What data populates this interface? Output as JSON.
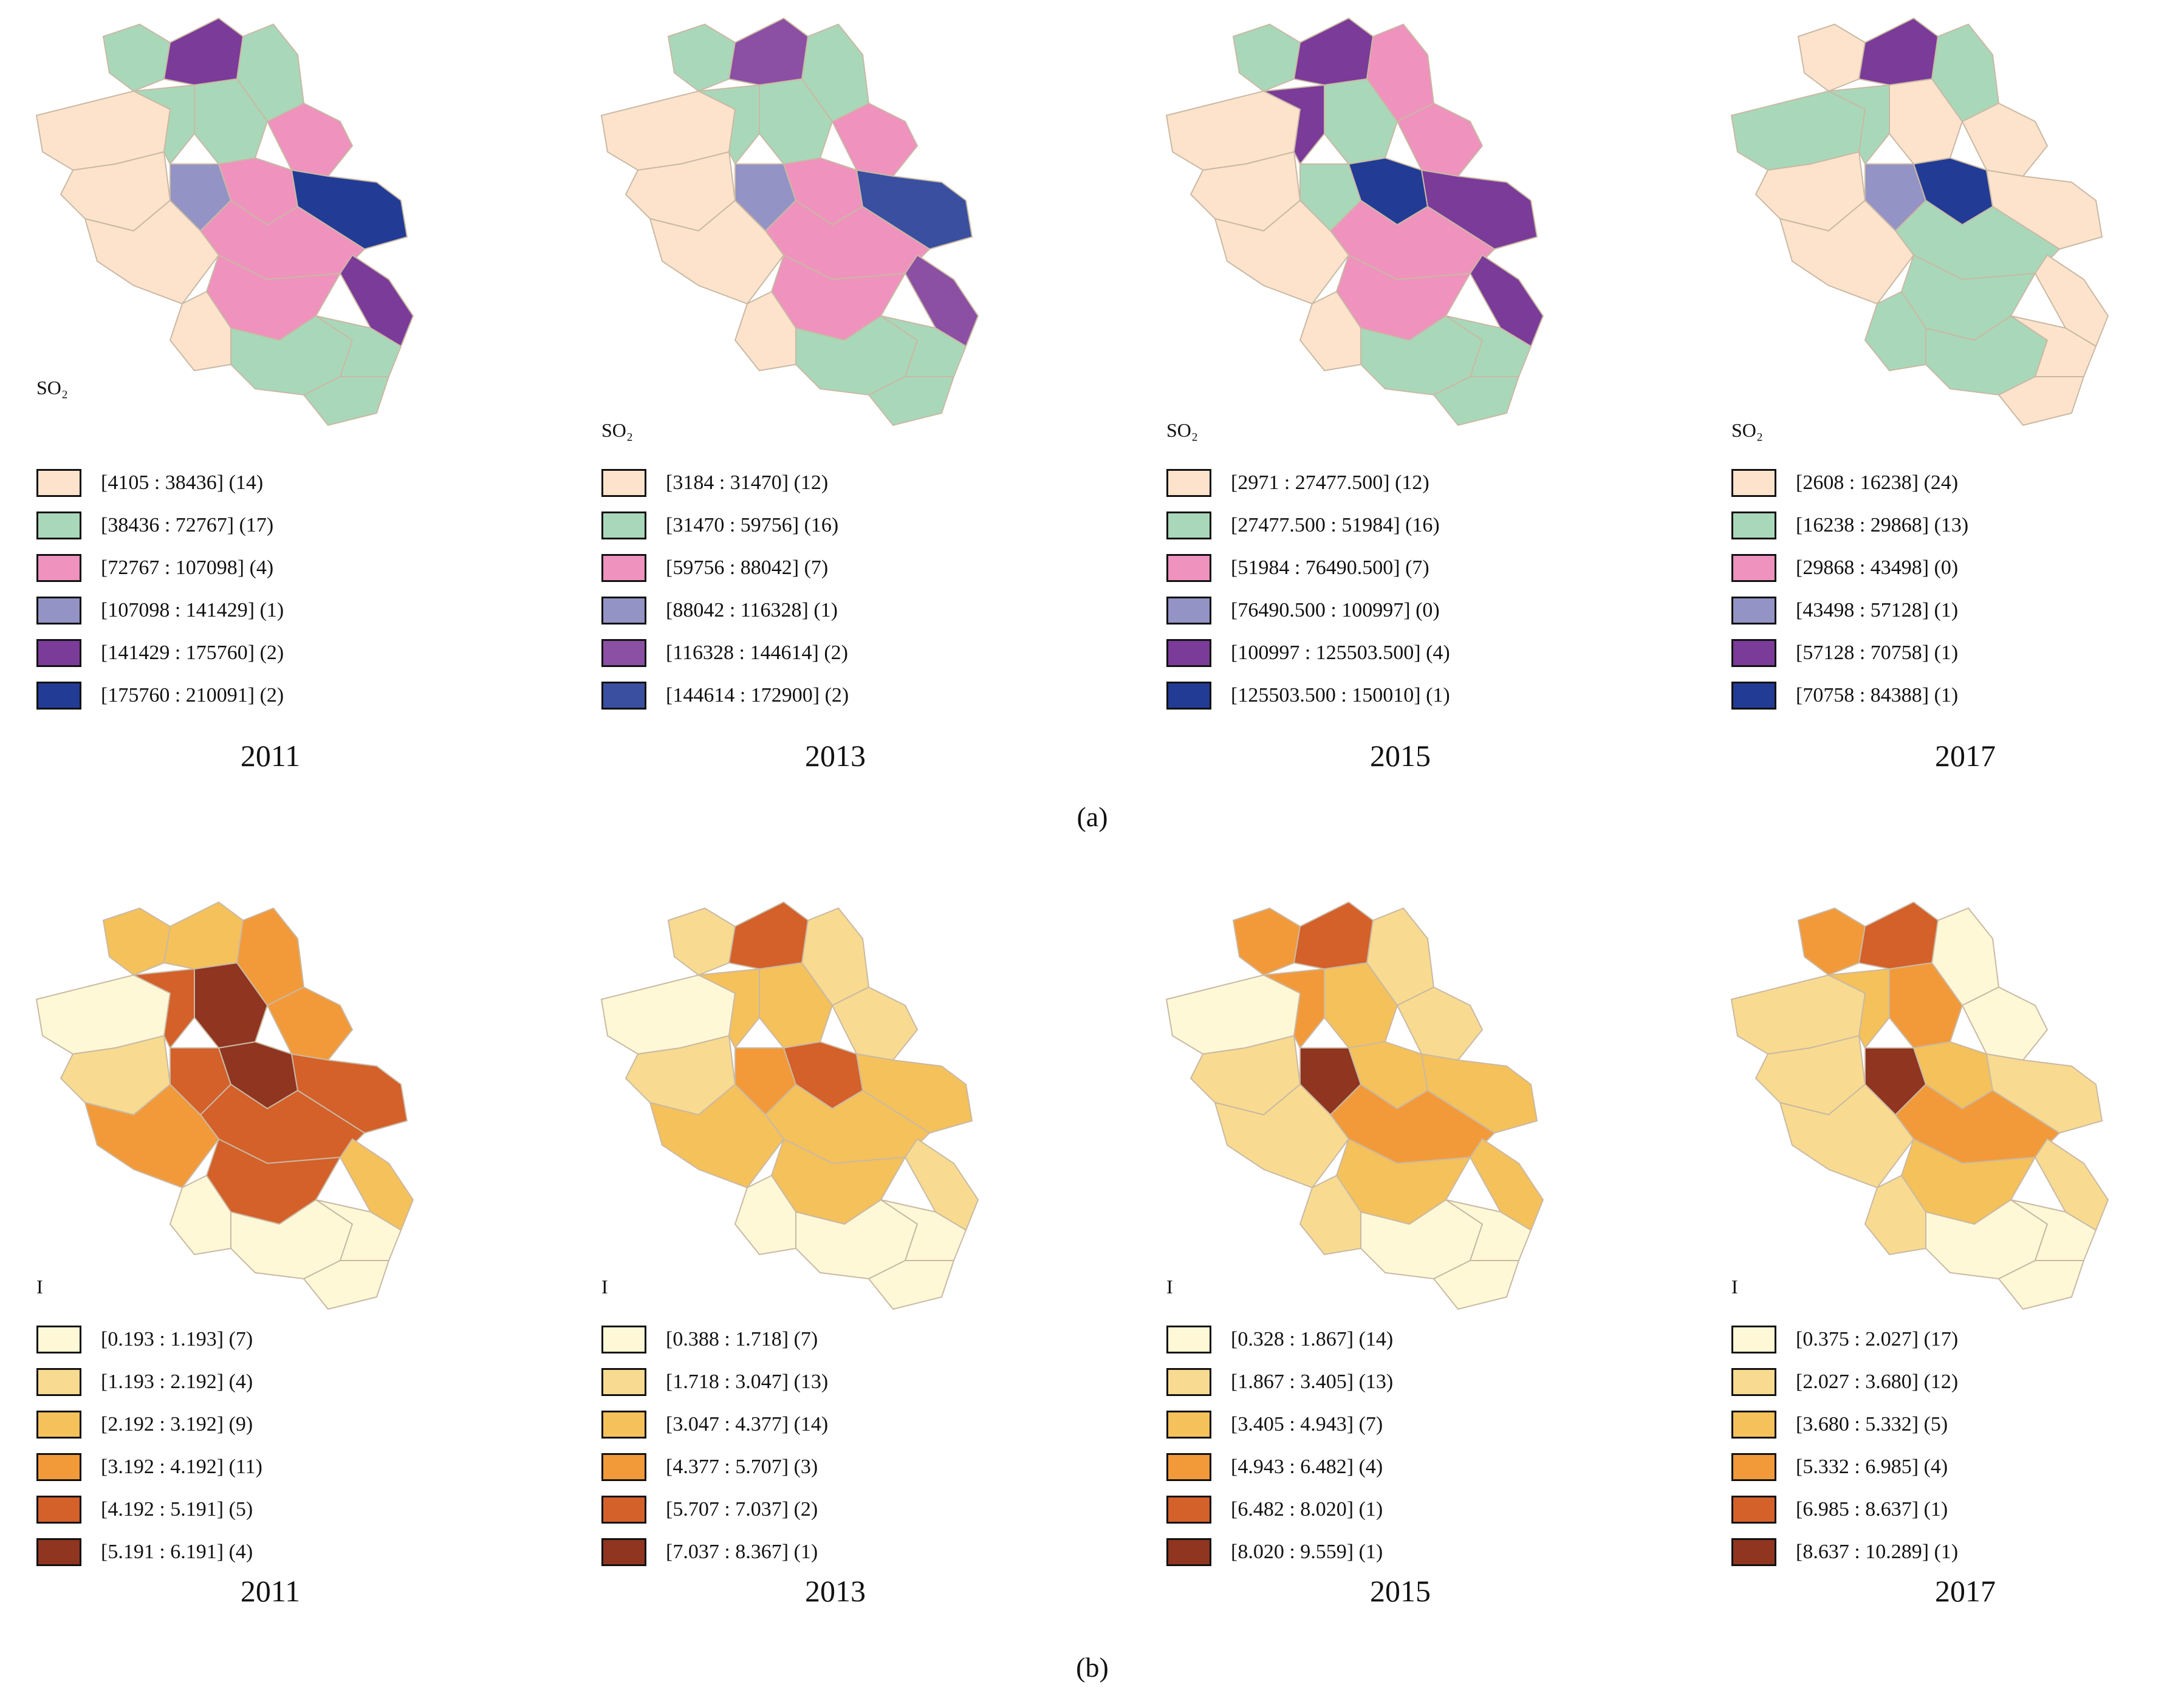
{
  "section_a": {
    "caption": "(a)",
    "legend_title": "SO₂",
    "panels": [
      {
        "year": "2011",
        "classes": [
          {
            "label": "[4105 : 38436] (14)",
            "color": "#fde3cc"
          },
          {
            "label": "[38436 : 72767] (17)",
            "color": "#a8d8b9"
          },
          {
            "label": "[72767 : 107098] (4)",
            "color": "#ef92bd"
          },
          {
            "label": "[107098 : 141429] (1)",
            "color": "#9493c6"
          },
          {
            "label": "[141429 : 175760] (2)",
            "color": "#7b3b98"
          },
          {
            "label": "[175760 : 210091] (2)",
            "color": "#223b95"
          }
        ]
      },
      {
        "year": "2013",
        "classes": [
          {
            "label": "[3184 : 31470] (12)",
            "color": "#fde3cc"
          },
          {
            "label": "[31470 : 59756] (16)",
            "color": "#a8d8b9"
          },
          {
            "label": "[59756 : 88042] (7)",
            "color": "#ef92bd"
          },
          {
            "label": "[88042 : 116328] (1)",
            "color": "#9493c6"
          },
          {
            "label": "[116328 : 144614] (2)",
            "color": "#8b4fa3"
          },
          {
            "label": "[144614 : 172900] (2)",
            "color": "#3a4fa0"
          }
        ]
      },
      {
        "year": "2015",
        "classes": [
          {
            "label": "[2971 : 27477.500] (12)",
            "color": "#fde3cc"
          },
          {
            "label": "[27477.500 : 51984] (16)",
            "color": "#a8d8b9"
          },
          {
            "label": "[51984 : 76490.500] (7)",
            "color": "#ef92bd"
          },
          {
            "label": "[76490.500 : 100997] (0)",
            "color": "#9493c6"
          },
          {
            "label": "[100997 : 125503.500] (4)",
            "color": "#7b3b98"
          },
          {
            "label": "[125503.500 : 150010] (1)",
            "color": "#223b95"
          }
        ]
      },
      {
        "year": "2017",
        "classes": [
          {
            "label": "[2608 : 16238] (24)",
            "color": "#fde3cc"
          },
          {
            "label": "[16238 : 29868] (13)",
            "color": "#a8d8b9"
          },
          {
            "label": "[29868 : 43498] (0)",
            "color": "#ef92bd"
          },
          {
            "label": "[43498 : 57128] (1)",
            "color": "#9493c6"
          },
          {
            "label": "[57128 : 70758] (1)",
            "color": "#7b3b98"
          },
          {
            "label": "[70758 : 84388] (1)",
            "color": "#223b95"
          }
        ]
      }
    ]
  },
  "section_b": {
    "caption": "(b)",
    "legend_title": "I",
    "panels": [
      {
        "year": "2011",
        "classes": [
          {
            "label": "[0.193 : 1.193] (7)",
            "color": "#fef8d6"
          },
          {
            "label": "[1.193 : 2.192] (4)",
            "color": "#f8db90"
          },
          {
            "label": "[2.192 : 3.192] (9)",
            "color": "#f5c15a"
          },
          {
            "label": "[3.192 : 4.192] (11)",
            "color": "#f29a3a"
          },
          {
            "label": "[4.192 : 5.191] (5)",
            "color": "#d4602a"
          },
          {
            "label": "[5.191 : 6.191] (4)",
            "color": "#8f3520"
          }
        ]
      },
      {
        "year": "2013",
        "classes": [
          {
            "label": "[0.388 : 1.718] (7)",
            "color": "#fef8d6"
          },
          {
            "label": "[1.718 : 3.047] (13)",
            "color": "#f8db90"
          },
          {
            "label": "[3.047 : 4.377] (14)",
            "color": "#f5c15a"
          },
          {
            "label": "[4.377 : 5.707] (3)",
            "color": "#f29a3a"
          },
          {
            "label": "[5.707 : 7.037] (2)",
            "color": "#d4602a"
          },
          {
            "label": "[7.037 : 8.367] (1)",
            "color": "#8f3520"
          }
        ]
      },
      {
        "year": "2015",
        "classes": [
          {
            "label": "[0.328 : 1.867] (14)",
            "color": "#fef8d6"
          },
          {
            "label": "[1.867 : 3.405] (13)",
            "color": "#f8db90"
          },
          {
            "label": "[3.405 : 4.943] (7)",
            "color": "#f5c15a"
          },
          {
            "label": "[4.943 : 6.482] (4)",
            "color": "#f29a3a"
          },
          {
            "label": "[6.482 : 8.020] (1)",
            "color": "#d4602a"
          },
          {
            "label": "[8.020 : 9.559] (1)",
            "color": "#8f3520"
          }
        ]
      },
      {
        "year": "2017",
        "classes": [
          {
            "label": "[0.375 : 2.027] (17)",
            "color": "#fef8d6"
          },
          {
            "label": "[2.027 : 3.680] (12)",
            "color": "#f8db90"
          },
          {
            "label": "[3.680 : 5.332] (5)",
            "color": "#f5c15a"
          },
          {
            "label": "[5.332 : 6.985] (4)",
            "color": "#f29a3a"
          },
          {
            "label": "[6.985 : 8.637] (1)",
            "color": "#d4602a"
          },
          {
            "label": "[8.637 : 10.289] (1)",
            "color": "#8f3520"
          }
        ]
      }
    ]
  }
}
